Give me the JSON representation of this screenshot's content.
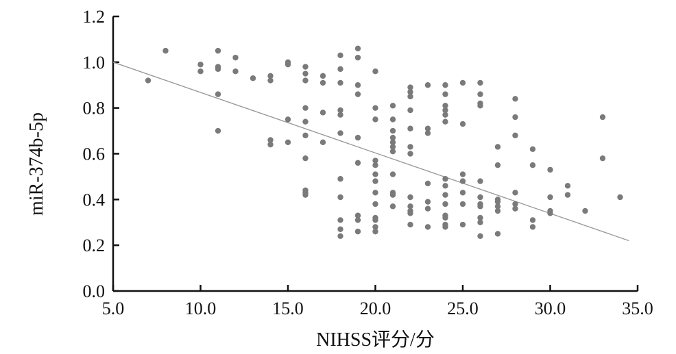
{
  "chart_data": {
    "type": "scatter",
    "xlabel": "NIHSS评分/分",
    "ylabel": "miR-374b-5p",
    "xlim": [
      5.0,
      35.0
    ],
    "ylim": [
      0.0,
      1.2
    ],
    "x_ticks": [
      "5.0",
      "10.0",
      "15.0",
      "20.0",
      "25.0",
      "30.0",
      "35.0"
    ],
    "y_ticks": [
      "0.0",
      "0.2",
      "0.4",
      "0.6",
      "0.8",
      "1.0",
      "1.2"
    ],
    "grid": false,
    "point_color": "#7a7a7a",
    "line_color": "#9a9a9a",
    "trendline": {
      "x": [
        5.0,
        34.5
      ],
      "y": [
        1.0,
        0.22
      ]
    },
    "points": {
      "x": [
        7,
        8,
        10,
        10,
        11,
        11,
        11,
        11,
        11,
        12,
        12,
        13,
        14,
        14,
        14,
        14,
        15,
        15,
        15,
        15,
        16,
        16,
        16,
        16,
        16,
        16,
        16,
        16,
        16,
        16,
        17,
        17,
        17,
        17,
        18,
        18,
        18,
        18,
        18,
        18,
        18,
        18,
        18,
        18,
        18,
        19,
        19,
        19,
        19,
        19,
        19,
        19,
        19,
        19,
        20,
        20,
        20,
        20,
        20,
        20,
        20,
        20,
        20,
        20,
        20,
        20,
        20,
        21,
        21,
        21,
        21,
        21,
        21,
        21,
        21,
        21,
        21,
        21,
        22,
        22,
        22,
        22,
        22,
        22,
        22,
        22,
        22,
        22,
        22,
        22,
        23,
        23,
        23,
        23,
        23,
        23,
        23,
        24,
        24,
        24,
        24,
        24,
        24,
        24,
        24,
        24,
        24,
        24,
        24,
        24,
        24,
        25,
        25,
        25,
        25,
        25,
        25,
        25,
        26,
        26,
        26,
        26,
        26,
        26,
        26,
        26,
        26,
        26,
        26,
        27,
        27,
        27,
        27,
        27,
        27,
        27,
        28,
        28,
        28,
        28,
        28,
        28,
        29,
        29,
        29,
        29,
        30,
        30,
        30,
        30,
        31,
        31,
        32,
        33,
        33,
        34
      ],
      "y": [
        0.92,
        1.05,
        0.96,
        0.99,
        1.05,
        0.98,
        0.97,
        0.86,
        0.7,
        1.02,
        0.96,
        0.93,
        0.94,
        0.92,
        0.66,
        0.64,
        1.0,
        0.99,
        0.75,
        0.65,
        0.98,
        0.95,
        0.92,
        0.8,
        0.74,
        0.68,
        0.58,
        0.44,
        0.43,
        0.42,
        0.94,
        0.91,
        0.78,
        0.65,
        1.03,
        0.97,
        0.91,
        0.79,
        0.77,
        0.69,
        0.49,
        0.41,
        0.31,
        0.27,
        0.24,
        1.06,
        1.02,
        0.9,
        0.86,
        0.67,
        0.56,
        0.33,
        0.31,
        0.26,
        0.96,
        0.8,
        0.75,
        0.57,
        0.55,
        0.51,
        0.48,
        0.43,
        0.38,
        0.32,
        0.31,
        0.28,
        0.26,
        0.81,
        0.75,
        0.7,
        0.67,
        0.65,
        0.63,
        0.61,
        0.51,
        0.43,
        0.42,
        0.37,
        0.89,
        0.87,
        0.85,
        0.79,
        0.71,
        0.63,
        0.6,
        0.41,
        0.37,
        0.35,
        0.34,
        0.29,
        0.9,
        0.71,
        0.69,
        0.47,
        0.39,
        0.36,
        0.28,
        0.9,
        0.86,
        0.81,
        0.79,
        0.77,
        0.74,
        0.49,
        0.46,
        0.42,
        0.38,
        0.33,
        0.32,
        0.29,
        0.28,
        0.91,
        0.73,
        0.51,
        0.48,
        0.43,
        0.38,
        0.29,
        0.91,
        0.86,
        0.82,
        0.81,
        0.48,
        0.41,
        0.38,
        0.37,
        0.32,
        0.3,
        0.24,
        0.63,
        0.55,
        0.4,
        0.39,
        0.37,
        0.35,
        0.25,
        0.84,
        0.76,
        0.68,
        0.43,
        0.38,
        0.36,
        0.62,
        0.55,
        0.31,
        0.28,
        0.53,
        0.41,
        0.35,
        0.34,
        0.46,
        0.42,
        0.35,
        0.76,
        0.58,
        0.41
      ]
    }
  }
}
